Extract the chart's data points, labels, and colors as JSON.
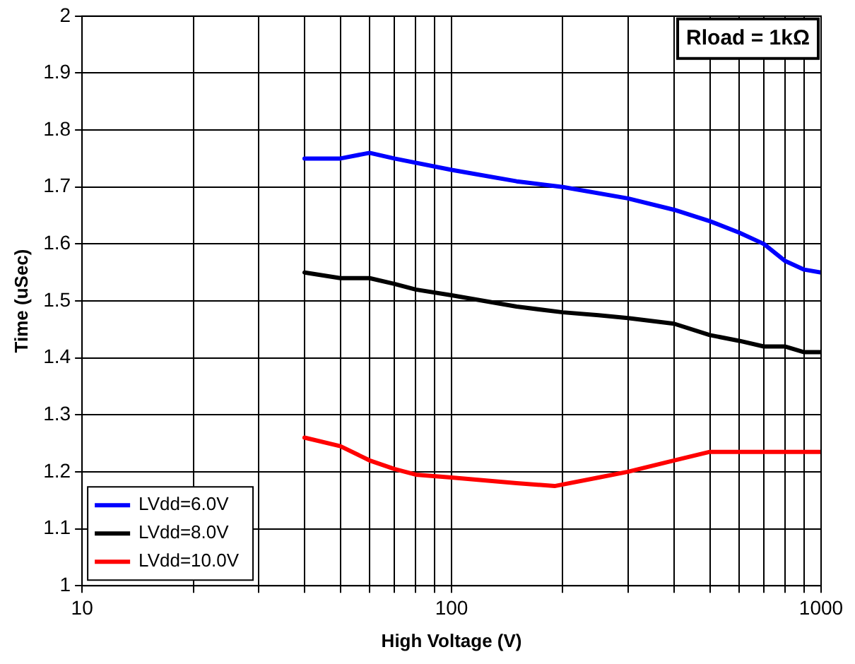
{
  "chart_data": {
    "type": "line",
    "xlabel": "High Voltage (V)",
    "ylabel": "Time (uSec)",
    "annotations": [
      "Rload = 1kΩ"
    ],
    "xlim": [
      10,
      1000
    ],
    "xticks": [
      10,
      {
        "value": 20,
        "label": null
      },
      {
        "value": 30,
        "label": null
      },
      {
        "value": 40,
        "label": null
      },
      {
        "value": 50,
        "label": null
      },
      {
        "value": 60,
        "label": null
      },
      {
        "value": 70,
        "label": null
      },
      {
        "value": 80,
        "label": null
      },
      {
        "value": 90,
        "label": null
      },
      100,
      {
        "value": 200,
        "label": null
      },
      {
        "value": 300,
        "label": null
      },
      {
        "value": 400,
        "label": null
      },
      {
        "value": 500,
        "label": null
      },
      {
        "value": 600,
        "label": null
      },
      {
        "value": 700,
        "label": null
      },
      {
        "value": 800,
        "label": null
      },
      {
        "value": 900,
        "label": null
      },
      1000
    ],
    "ylim": [
      1,
      2
    ],
    "yticks": [
      1,
      1.1,
      1.2,
      1.3,
      1.4,
      1.5,
      1.6,
      1.7,
      1.8,
      1.9,
      2
    ],
    "log": "x",
    "grid": true,
    "legend": "bottom left",
    "marker": "none",
    "line_style": "solid",
    "series": [
      {
        "name": "LVdd=6.0V",
        "color": "#0000ff",
        "x": [
          40,
          50,
          60,
          70,
          100,
          150,
          200,
          300,
          400,
          500,
          600,
          700,
          800,
          900,
          1000
        ],
        "values": [
          1.75,
          1.75,
          1.76,
          1.75,
          1.73,
          1.71,
          1.7,
          1.68,
          1.66,
          1.64,
          1.62,
          1.6,
          1.57,
          1.555,
          1.55
        ]
      },
      {
        "name": "LVdd=8.0V",
        "color": "#000000",
        "x": [
          40,
          50,
          60,
          70,
          80,
          100,
          150,
          200,
          250,
          300,
          400,
          500,
          600,
          700,
          800,
          900,
          1000
        ],
        "values": [
          1.55,
          1.54,
          1.54,
          1.53,
          1.52,
          1.51,
          1.49,
          1.48,
          1.475,
          1.47,
          1.46,
          1.44,
          1.43,
          1.42,
          1.42,
          1.41,
          1.41
        ]
      },
      {
        "name": "LVdd=10.0V",
        "color": "#ff0000",
        "x": [
          40,
          50,
          60,
          70,
          80,
          100,
          150,
          190,
          250,
          300,
          400,
          500,
          600,
          1000
        ],
        "values": [
          1.26,
          1.245,
          1.22,
          1.205,
          1.195,
          1.19,
          1.18,
          1.175,
          1.19,
          1.2,
          1.22,
          1.235,
          1.235,
          1.235
        ]
      }
    ]
  }
}
